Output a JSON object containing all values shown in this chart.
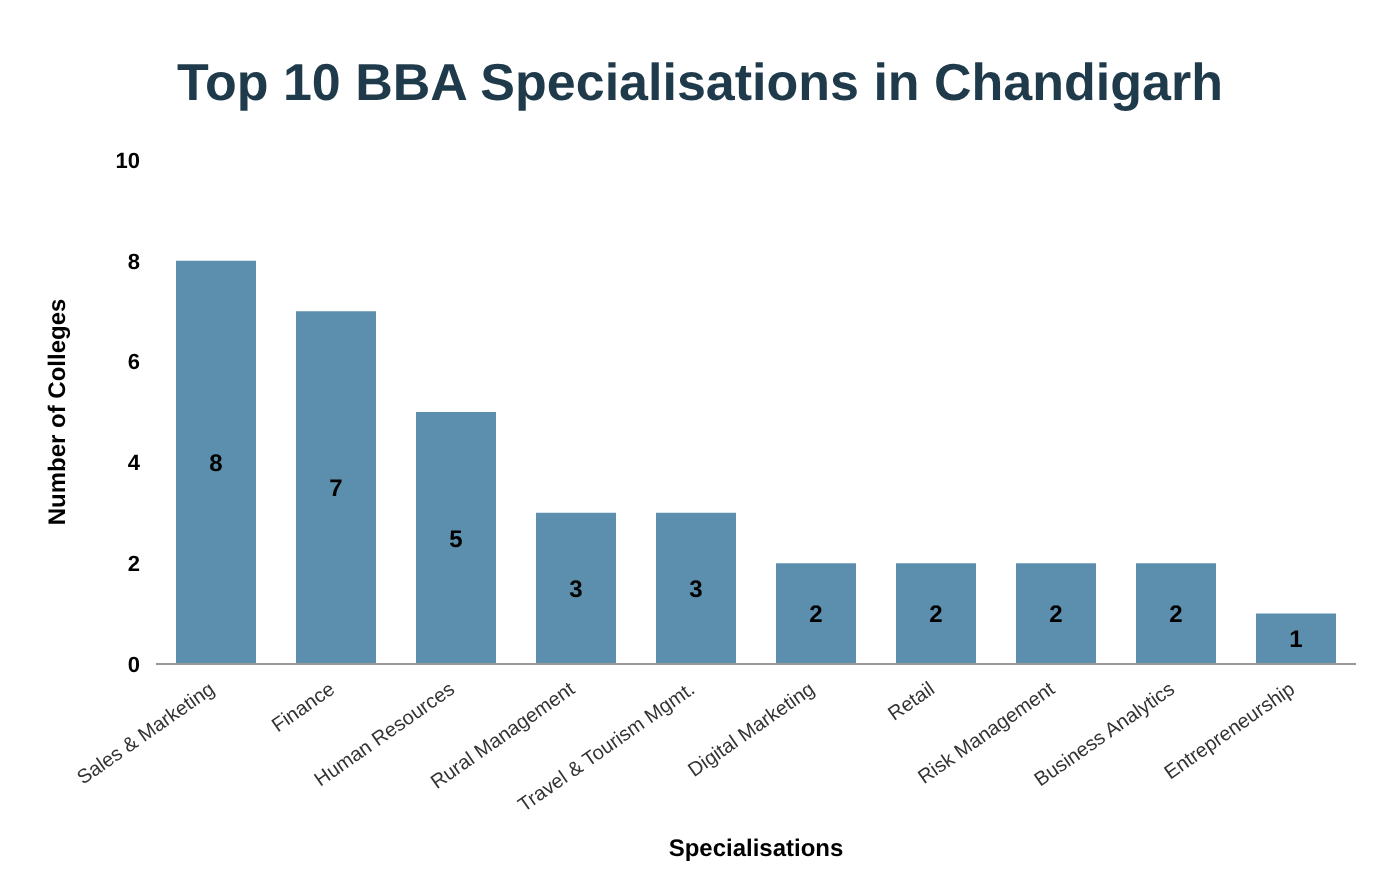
{
  "chart_data": {
    "type": "bar",
    "title": "Top 10 BBA Specialisations in Chandigarh",
    "xlabel": "Specialisations",
    "ylabel": "Number of Colleges",
    "categories": [
      "Sales & Marketing",
      "Finance",
      "Human Resources",
      "Rural Management",
      "Travel & Tourism Mgmt.",
      "Digital Marketing",
      "Retail",
      "Risk Management",
      "Business Analytics",
      "Entrepreneurship"
    ],
    "values": [
      8,
      7,
      5,
      3,
      3,
      2,
      2,
      2,
      2,
      1
    ],
    "color": "#5b8fad",
    "ylim": [
      0,
      10
    ],
    "yticks": [
      0,
      2,
      4,
      6,
      8,
      10
    ],
    "grid": false,
    "legend": false,
    "data_labels": true
  }
}
